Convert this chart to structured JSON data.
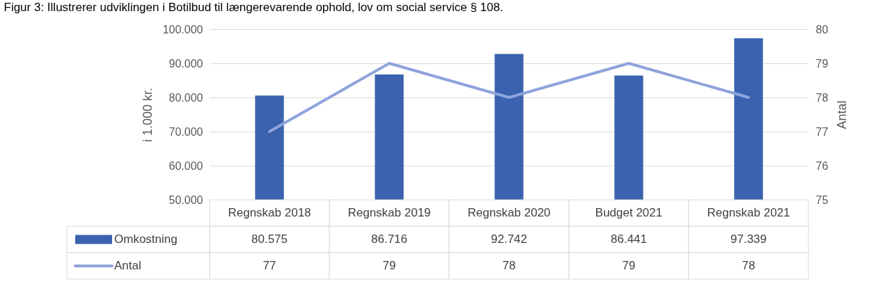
{
  "chart_data": {
    "type": "bar",
    "title": "Figur 3: Illustrerer udviklingen i Botilbud til længerevarende ophold, lov om social service § 108.",
    "ylabel": "i 1.000 kr.",
    "y2label": "Antal",
    "categories": [
      "Regnskab 2018",
      "Regnskab 2019",
      "Regnskab 2020",
      "Budget 2021",
      "Regnskab 2021"
    ],
    "series": [
      {
        "name": "Omkostning",
        "type": "bar",
        "color": "#3a62ae",
        "values": [
          80575,
          86716,
          92742,
          86441,
          97339
        ],
        "value_labels": [
          "80.575",
          "86.716",
          "92.742",
          "86.441",
          "97.339"
        ]
      },
      {
        "name": "Antal",
        "type": "line",
        "axis": "y2",
        "color": "#8fa3dc",
        "values": [
          77,
          79,
          78,
          79,
          78
        ],
        "value_labels": [
          "77",
          "79",
          "78",
          "79",
          "78"
        ]
      }
    ],
    "ylim": [
      50000,
      100000
    ],
    "yticks": [
      {
        "value": 50000,
        "label": "50.000"
      },
      {
        "value": 60000,
        "label": "60.000"
      },
      {
        "value": 70000,
        "label": "70.000"
      },
      {
        "value": 80000,
        "label": "80.000"
      },
      {
        "value": 90000,
        "label": "90.000"
      },
      {
        "value": 100000,
        "label": "100.000"
      }
    ],
    "y2lim": [
      75,
      80
    ],
    "y2ticks": [
      75,
      76,
      77,
      78,
      79,
      80
    ],
    "grid": "y",
    "legend": "bottom left"
  }
}
